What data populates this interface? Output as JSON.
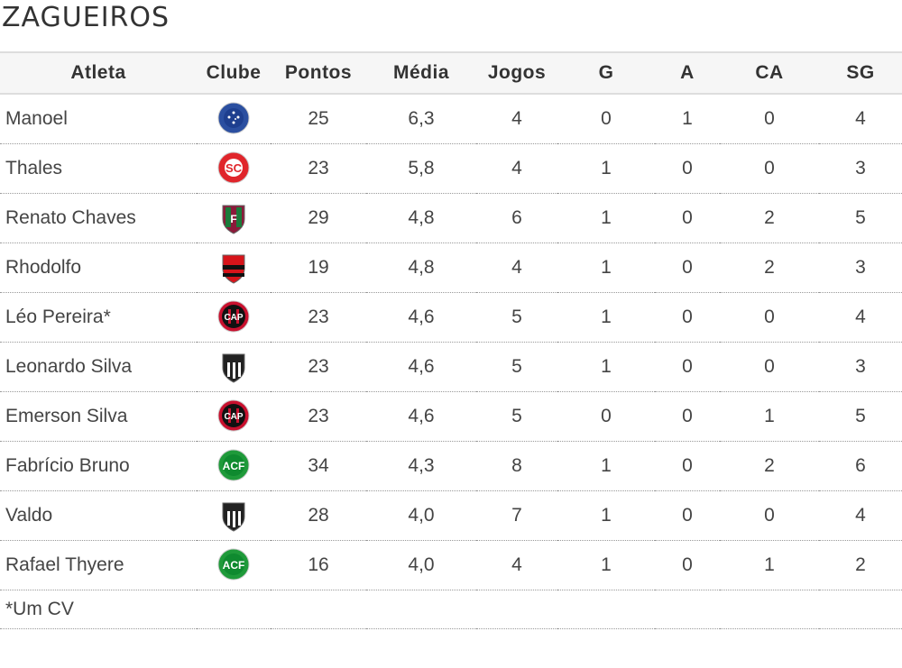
{
  "title": "ZAGUEIROS",
  "columns": [
    "Atleta",
    "Clube",
    "Pontos",
    "Média",
    "Jogos",
    "G",
    "A",
    "CA",
    "SG"
  ],
  "rows": [
    {
      "atleta": "Manoel",
      "clube": "cruzeiro",
      "pontos": "25",
      "media": "6,3",
      "jogos": "4",
      "g": "0",
      "a": "1",
      "ca": "0",
      "sg": "4"
    },
    {
      "atleta": "Thales",
      "clube": "internacional",
      "pontos": "23",
      "media": "5,8",
      "jogos": "4",
      "g": "1",
      "a": "0",
      "ca": "0",
      "sg": "3"
    },
    {
      "atleta": "Renato Chaves",
      "clube": "fluminense",
      "pontos": "29",
      "media": "4,8",
      "jogos": "6",
      "g": "1",
      "a": "0",
      "ca": "2",
      "sg": "5"
    },
    {
      "atleta": "Rhodolfo",
      "clube": "flamengo",
      "pontos": "19",
      "media": "4,8",
      "jogos": "4",
      "g": "1",
      "a": "0",
      "ca": "2",
      "sg": "3"
    },
    {
      "atleta": "Léo Pereira*",
      "clube": "atletico-pr",
      "pontos": "23",
      "media": "4,6",
      "jogos": "5",
      "g": "1",
      "a": "0",
      "ca": "0",
      "sg": "4"
    },
    {
      "atleta": "Leonardo Silva",
      "clube": "atletico-mg",
      "pontos": "23",
      "media": "4,6",
      "jogos": "5",
      "g": "1",
      "a": "0",
      "ca": "0",
      "sg": "3"
    },
    {
      "atleta": "Emerson Silva",
      "clube": "atletico-pr",
      "pontos": "23",
      "media": "4,6",
      "jogos": "5",
      "g": "0",
      "a": "0",
      "ca": "1",
      "sg": "5"
    },
    {
      "atleta": "Fabrício Bruno",
      "clube": "chapecoense",
      "pontos": "34",
      "media": "4,3",
      "jogos": "8",
      "g": "1",
      "a": "0",
      "ca": "2",
      "sg": "6"
    },
    {
      "atleta": "Valdo",
      "clube": "ceara",
      "pontos": "28",
      "media": "4,0",
      "jogos": "7",
      "g": "1",
      "a": "0",
      "ca": "0",
      "sg": "4"
    },
    {
      "atleta": "Rafael Thyere",
      "clube": "chapecoense",
      "pontos": "16",
      "media": "4,0",
      "jogos": "4",
      "g": "1",
      "a": "0",
      "ca": "1",
      "sg": "2"
    }
  ],
  "footnote": "*Um CV",
  "badge_colors": {
    "cruzeiro": "#2b4fa0",
    "internacional": "#e0252b",
    "fluminense": "#8b1a3a",
    "flamengo": "#d7141a",
    "atletico-pr": "#c8102e",
    "atletico-mg": "#222222",
    "chapecoense": "#1f9a3a",
    "ceara": "#222222"
  }
}
